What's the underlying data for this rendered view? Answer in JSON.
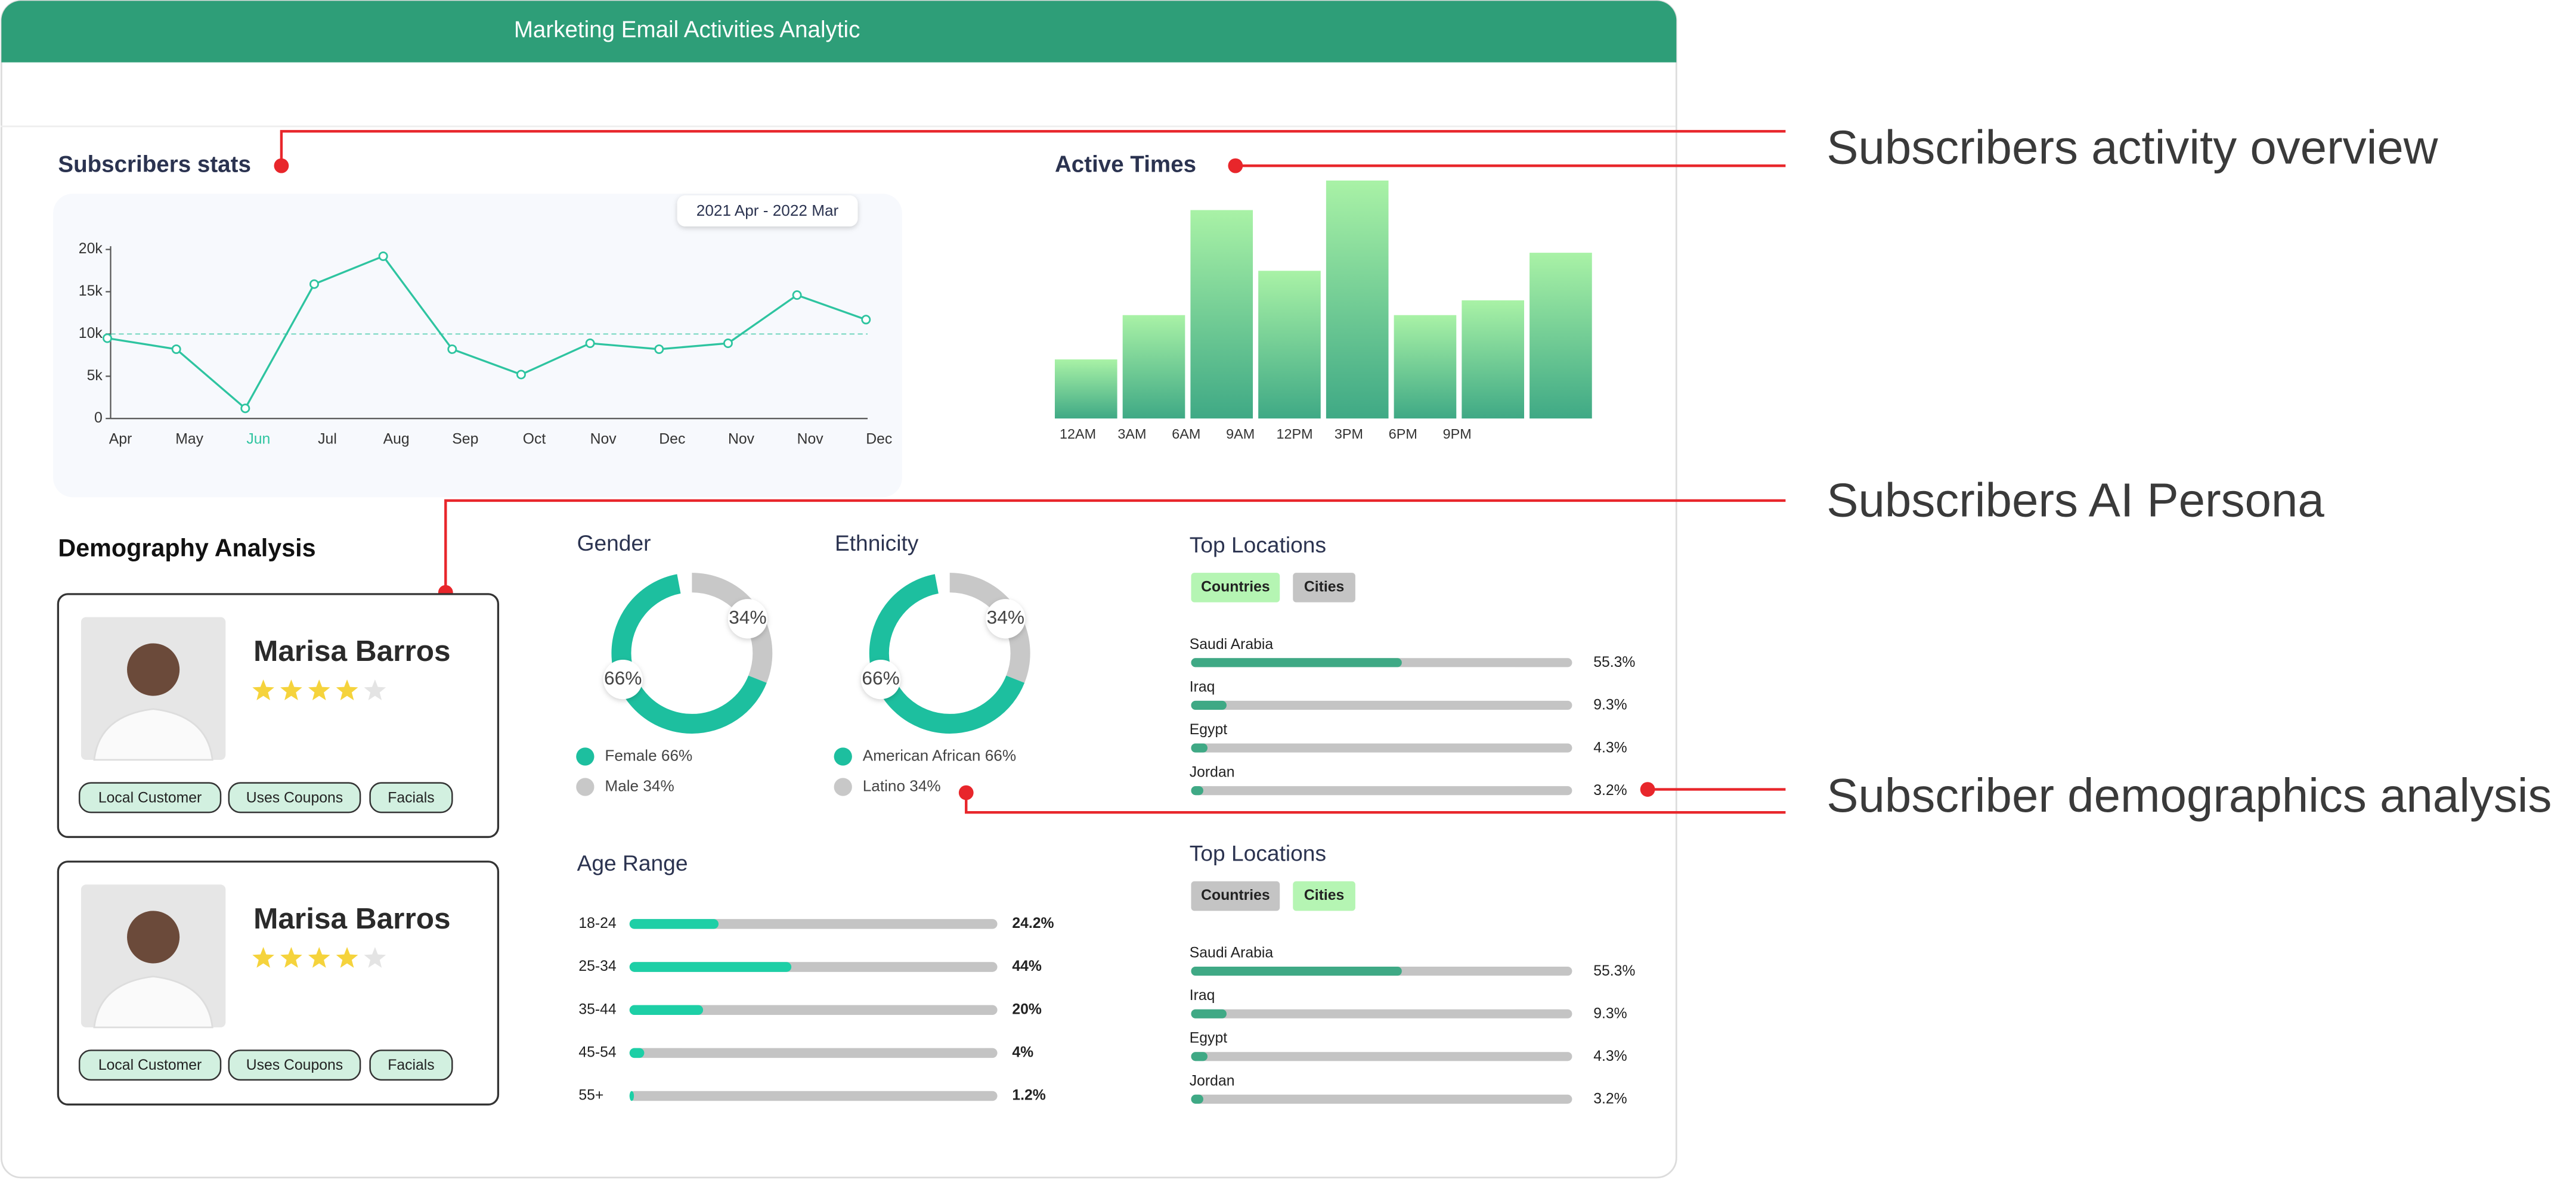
{
  "header": {
    "title": "Marketing Email Activities Analytic"
  },
  "annotations": [
    "Subscribers activity overview",
    "Subscribers AI Persona",
    "Subscriber demographics analysis"
  ],
  "subscribers_stats": {
    "type": "line",
    "title": "Subscribers stats",
    "date_range": "2021 Apr - 2022 Mar",
    "categories": [
      "Apr",
      "May",
      "Jun",
      "Jul",
      "Aug",
      "Sep",
      "Oct",
      "Nov",
      "Dec",
      "Nov",
      "Nov",
      "Dec"
    ],
    "highlight_index": 2,
    "values": [
      9500,
      8200,
      1200,
      15900,
      19200,
      8200,
      5200,
      8900,
      8200,
      8900,
      14600,
      11700
    ],
    "color": "#2ec4a0",
    "ylim": [
      0,
      20000
    ],
    "yticks": [
      0,
      {
        "value": 5000,
        "label": "5k"
      },
      {
        "value": 10000,
        "label": "10k"
      },
      {
        "value": 15000,
        "label": "15k"
      },
      {
        "value": 20000,
        "label": "20k"
      }
    ],
    "reference_line": 10000
  },
  "active_times": {
    "type": "bar",
    "title": "Active Times",
    "categories": [
      "12AM",
      "3AM",
      "6AM",
      "9AM",
      "12PM",
      "3PM",
      "6PM",
      "9PM"
    ],
    "values": [
      36,
      63,
      127,
      90,
      145,
      63,
      72,
      101
    ]
  },
  "demography": {
    "title": "Demography Analysis",
    "personas": [
      {
        "name": "Marisa Barros",
        "rating": 4,
        "tags": [
          "Local Customer",
          "Uses Coupons",
          "Facials"
        ]
      },
      {
        "name": "Marisa Barros",
        "rating": 4,
        "tags": [
          "Local Customer",
          "Uses Coupons",
          "Facials"
        ]
      }
    ]
  },
  "gender": {
    "type": "donut",
    "title": "Gender",
    "values": [
      66,
      34
    ],
    "value_labels": [
      "66%",
      "34%"
    ],
    "legend": [
      "Female 66%",
      "Male 34%"
    ],
    "colors": [
      "#1dbf9f",
      "#c8c8c8"
    ]
  },
  "ethnicity": {
    "type": "donut",
    "title": "Ethnicity",
    "values": [
      66,
      34
    ],
    "value_labels": [
      "66%",
      "34%"
    ],
    "legend": [
      "American African 66%",
      "Latino 34%"
    ],
    "colors": [
      "#1dbf9f",
      "#c8c8c8"
    ]
  },
  "top_locations": [
    {
      "title": "Top Locations",
      "tabs": [
        "Countries",
        "Cities"
      ],
      "active_tab": 0,
      "categories": [
        "Saudi Arabia",
        "Iraq",
        "Egypt",
        "Jordan"
      ],
      "values": [
        55.3,
        9.3,
        4.3,
        3.2
      ],
      "value_labels": [
        "55.3%",
        "9.3%",
        "4.3%",
        "3.2%"
      ],
      "color": "#3fa985"
    },
    {
      "title": "Top Locations",
      "tabs": [
        "Countries",
        "Cities"
      ],
      "active_tab": 1,
      "categories": [
        "Saudi Arabia",
        "Iraq",
        "Egypt",
        "Jordan"
      ],
      "values": [
        55.3,
        9.3,
        4.3,
        3.2
      ],
      "value_labels": [
        "55.3%",
        "9.3%",
        "4.3%",
        "3.2%"
      ],
      "color": "#3fa985"
    }
  ],
  "age_range": {
    "title": "Age Range",
    "categories": [
      "18-24",
      "25-34",
      "35-44",
      "45-54",
      "55+"
    ],
    "values": [
      24.2,
      44,
      20,
      4,
      1.2
    ],
    "value_labels": [
      "24.2%",
      "44%",
      "20%",
      "4%",
      "1.2%"
    ],
    "color": "#1dcfa6"
  }
}
